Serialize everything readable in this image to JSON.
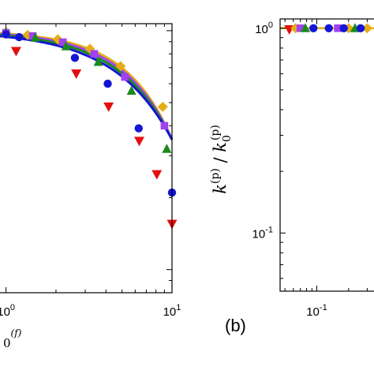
{
  "chart_data": [
    {
      "panel": "left",
      "type": "scatter",
      "scale": "log-log",
      "x_tick_labels": [
        {
          "value": 1,
          "base": "10",
          "exp": "0"
        },
        {
          "value": 10,
          "base": "10",
          "exp": "1"
        }
      ],
      "xlabel_fragment": "0",
      "xlabel_fragment_sup": "(f)",
      "xlim": [
        0.9,
        10
      ],
      "ylim": [
        0.08,
        1.07
      ],
      "series": [
        {
          "color": "#e4ad17",
          "marker": "diamond",
          "x": [
            1.0,
            1.35,
            2.05,
            3.2,
            4.9,
            8.8
          ],
          "y": [
            0.985,
            0.96,
            0.92,
            0.84,
            0.71,
            0.48
          ]
        },
        {
          "color": "#a042f0",
          "marker": "square",
          "x": [
            1.0,
            1.45,
            2.2,
            3.4,
            5.2,
            9.0
          ],
          "y": [
            0.98,
            0.95,
            0.895,
            0.8,
            0.64,
            0.4
          ]
        },
        {
          "color": "#1a8a1a",
          "marker": "triangle-up",
          "x": [
            1.0,
            1.5,
            2.3,
            3.6,
            5.7,
            9.3
          ],
          "y": [
            0.975,
            0.935,
            0.86,
            0.74,
            0.56,
            0.32
          ]
        },
        {
          "color": "#1515d6",
          "marker": "circle",
          "x": [
            1.0,
            1.2,
            2.6,
            4.1,
            6.3,
            10.0
          ],
          "y": [
            0.965,
            0.94,
            0.77,
            0.6,
            0.39,
            0.21
          ]
        },
        {
          "color": "#e31010",
          "marker": "triangle-down",
          "x": [
            1.15,
            2.65,
            4.15,
            6.35,
            8.1,
            10.0
          ],
          "y": [
            0.82,
            0.66,
            0.48,
            0.345,
            0.25,
            0.155
          ]
        }
      ],
      "fit_lines": [
        {
          "color": "#e4ad17",
          "p": 1.55,
          "x_start": 0.9,
          "x_end": 10.0
        },
        {
          "color": "#a042f0",
          "p": 1.45,
          "x_start": 0.9,
          "x_end": 10.0
        },
        {
          "color": "#1a8a1a",
          "p": 1.35,
          "x_start": 0.9,
          "x_end": 10.0
        },
        {
          "color": "#1515d6",
          "p": 1.25,
          "x_start": 0.9,
          "x_end": 10.0
        }
      ]
    },
    {
      "panel": "b",
      "type": "scatter",
      "scale": "log-log",
      "panel_label": "(b)",
      "x_tick_labels": [
        {
          "value": 0.1,
          "base": "10",
          "exp": "-1"
        }
      ],
      "y_tick_labels": [
        {
          "value": 1,
          "base": "10",
          "exp": "0"
        },
        {
          "value": 0.1,
          "base": "10",
          "exp": "-1"
        }
      ],
      "ylabel": {
        "num_k": "k",
        "num_sup": "(p)",
        "den_k": "k",
        "den_sub": "0",
        "den_sup": "(p)"
      },
      "xlim": [
        0.045,
        0.36
      ],
      "ylim": [
        0.052,
        1.11
      ],
      "reference_line": {
        "y": 1.0,
        "color": "#e4ad17"
      },
      "series": [
        {
          "color": "#e31010",
          "marker": "triangle-down",
          "x": [
            0.055
          ],
          "y": [
            0.985
          ]
        },
        {
          "color": "#e4ad17",
          "marker": "diamond",
          "x": [
            0.063,
            0.2,
            0.3
          ],
          "y": [
            1.0,
            1.0,
            1.0
          ]
        },
        {
          "color": "#a042f0",
          "marker": "square",
          "x": [
            0.07,
            0.158
          ],
          "y": [
            1.0,
            1.0
          ]
        },
        {
          "color": "#1a8a1a",
          "marker": "triangle-up",
          "x": [
            0.078,
            0.23
          ],
          "y": [
            1.0,
            1.0
          ]
        },
        {
          "color": "#1515d6",
          "marker": "circle",
          "x": [
            0.093,
            0.13,
            0.18,
            0.26
          ],
          "y": [
            1.0,
            1.0,
            1.0,
            1.0
          ]
        }
      ]
    }
  ]
}
